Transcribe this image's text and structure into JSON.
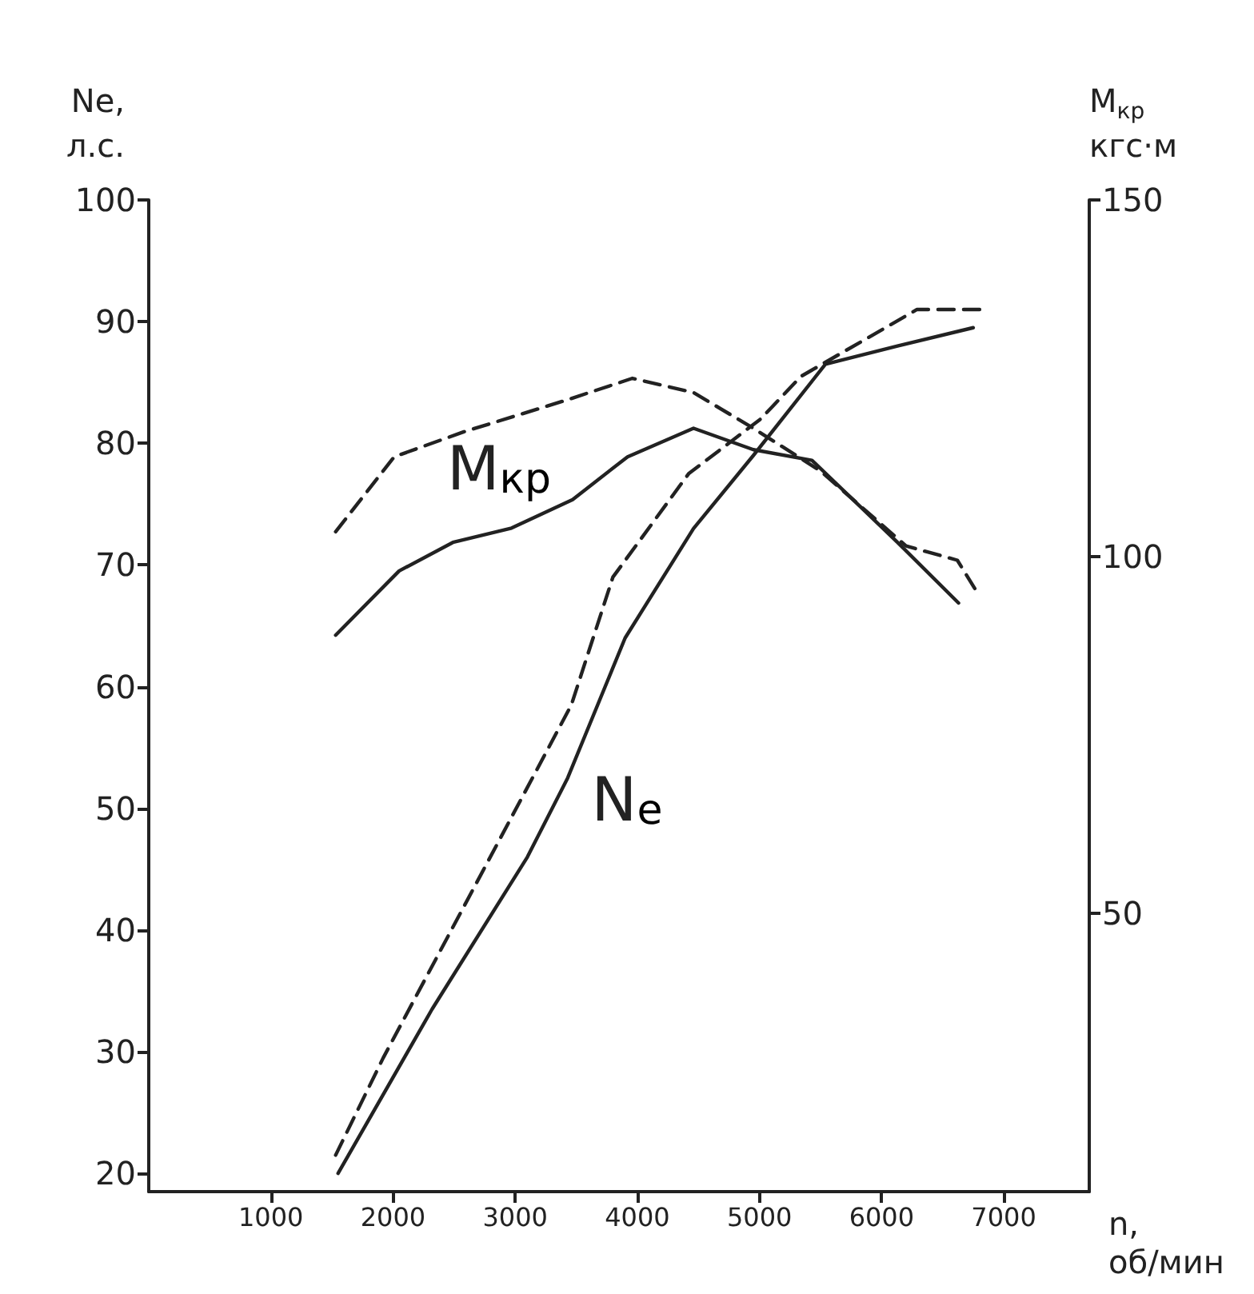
{
  "chart_data": {
    "type": "line",
    "xlabel": "n,\nоб/мин",
    "ylabel": "Ne,\nл.с.",
    "y2label": "M$_{кр}$\nкгс·м",
    "xlim": [
      0,
      7700
    ],
    "xticks": [
      1000,
      2000,
      3000,
      4000,
      5000,
      6000,
      7000
    ],
    "ylim": [
      18.5,
      100
    ],
    "yticks": [
      20,
      30,
      40,
      50,
      60,
      70,
      80,
      90,
      100
    ],
    "y2lim": [
      11,
      150
    ],
    "y2ticks": [
      50,
      100,
      150
    ],
    "grid": false,
    "marker": "none",
    "series": [
      {
        "color": "#222222",
        "line_style": "solid",
        "x": [
          1550,
          2320,
          3100,
          3430,
          3900,
          4460,
          4950,
          5540,
          6130,
          6750
        ],
        "values": [
          20,
          33.5,
          46,
          52.5,
          64,
          73,
          79,
          86.5,
          88,
          89.5
        ]
      },
      {
        "color": "#222222",
        "line_style": "dashed",
        "x": [
          1530,
          1920,
          3460,
          3800,
          4420,
          5010,
          5340,
          6290,
          6840
        ],
        "values": [
          21.5,
          29.5,
          58.5,
          69,
          77.5,
          82,
          85.5,
          91,
          91
        ]
      },
      {
        "color": "#222222",
        "line_style": "solid",
        "axis": "y2",
        "x": [
          1530,
          2050,
          2490,
          2970,
          3470,
          3920,
          4460,
          4950,
          5430,
          6130,
          6630
        ],
        "values": [
          89,
          98,
          102,
          104,
          108,
          114,
          118,
          115,
          113.5,
          102,
          93.5
        ]
      },
      {
        "color": "#222222",
        "line_style": "dashed",
        "axis": "y2",
        "x": [
          1530,
          2010,
          2580,
          3430,
          3960,
          4460,
          4950,
          5500,
          6200,
          6620,
          6800
        ],
        "values": [
          103.5,
          114,
          117.5,
          122,
          125,
          123,
          118,
          112,
          101.5,
          99.5,
          94.5
        ]
      }
    ],
    "annotations": [
      "M$_{кр}$",
      "N$_{e}$"
    ]
  }
}
